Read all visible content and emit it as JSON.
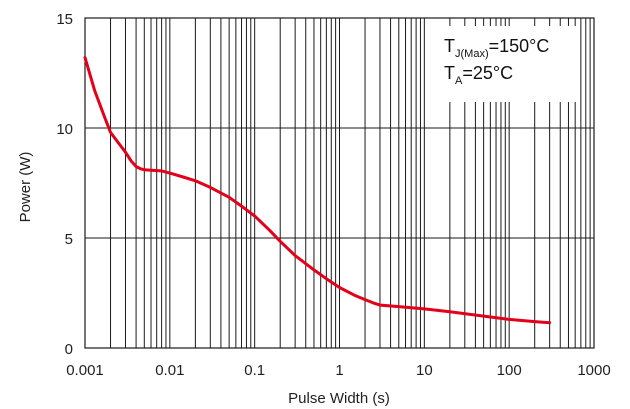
{
  "chart_data": {
    "type": "line",
    "xlabel": "Pulse Width (s)",
    "ylabel": "Power (W)",
    "x_scale": "log",
    "xlim": [
      0.001,
      1000
    ],
    "ylim": [
      0,
      15
    ],
    "x_ticks": [
      "0.001",
      "0.01",
      "0.1",
      "1",
      "10",
      "100",
      "1000"
    ],
    "y_ticks": [
      "0",
      "5",
      "10",
      "15"
    ],
    "grid": true,
    "line_color": "#e3001b",
    "annotation": {
      "line1_main": "T",
      "line1_sub": "J(Max)",
      "line1_rest": "=150°C",
      "line2_main": "T",
      "line2_sub": "A",
      "line2_rest": "=25°C"
    },
    "series": [
      {
        "x": [
          0.001,
          0.0013,
          0.0017,
          0.002,
          0.0025,
          0.003,
          0.0035,
          0.004,
          0.0045,
          0.005,
          0.006,
          0.008,
          0.01,
          0.015,
          0.02,
          0.03,
          0.05,
          0.07,
          0.1,
          0.15,
          0.2,
          0.3,
          0.5,
          0.7,
          1,
          1.5,
          2,
          2.5,
          3,
          5,
          10,
          20,
          50,
          100,
          200,
          300
        ],
        "y": [
          13.2,
          11.7,
          10.5,
          9.8,
          9.3,
          8.9,
          8.5,
          8.25,
          8.15,
          8.1,
          8.08,
          8.05,
          7.95,
          7.75,
          7.6,
          7.3,
          6.85,
          6.45,
          6.0,
          5.35,
          4.85,
          4.2,
          3.55,
          3.15,
          2.75,
          2.4,
          2.2,
          2.05,
          1.95,
          1.88,
          1.78,
          1.65,
          1.45,
          1.3,
          1.2,
          1.15
        ]
      }
    ]
  }
}
